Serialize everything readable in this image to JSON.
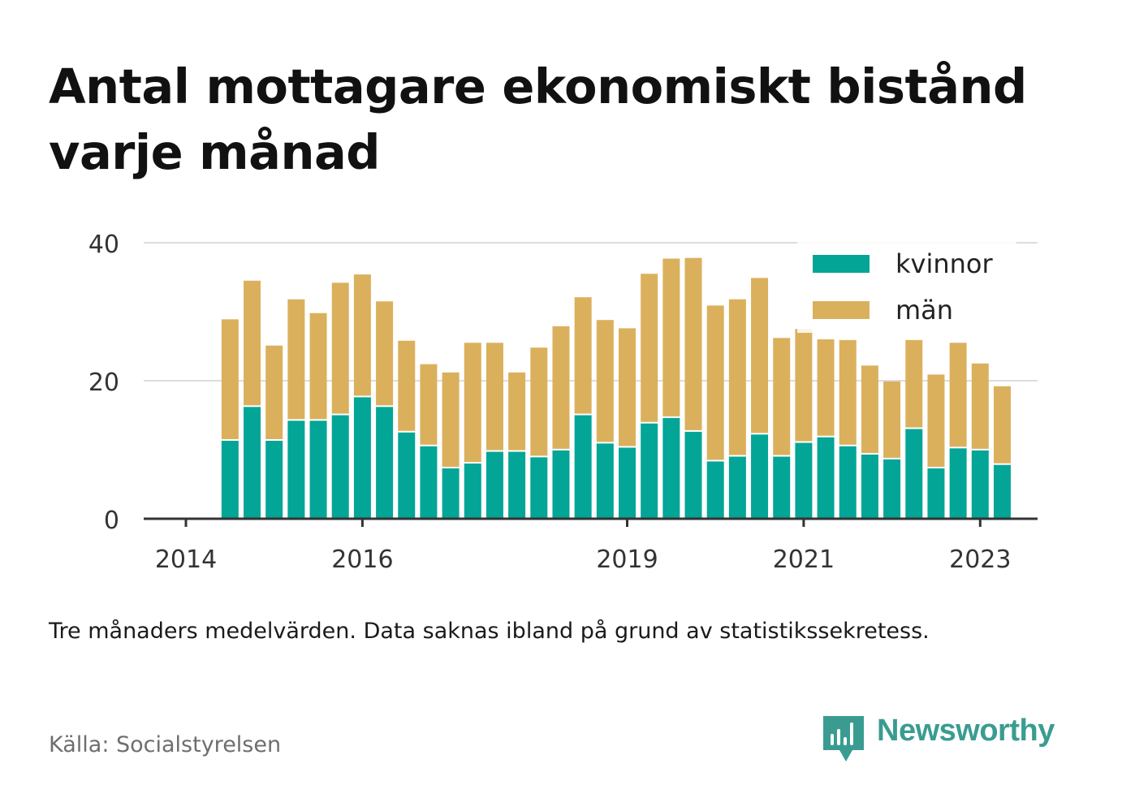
{
  "title": "Antal mottagare ekonomiskt bistånd varje månad",
  "note": "Tre månaders medelvärden. Data saknas ibland på grund av statistikssekretess.",
  "source": "Källa: Socialstyrelsen",
  "brand": "Newsworthy",
  "colors": {
    "kvinnor": "#03a597",
    "man": "#dbb05d",
    "axis": "#333333",
    "grid": "#dddddd",
    "brand": "#3a9c91"
  },
  "chart_data": {
    "type": "bar",
    "stacked": true,
    "ylim": [
      0,
      40
    ],
    "yticks": [
      0,
      20,
      40
    ],
    "xticks": [
      "2014",
      "2016",
      "2019",
      "2021",
      "2023"
    ],
    "grid": true,
    "legend_position": "top-right",
    "categories": [
      "2014-07",
      "2014-10",
      "2015-01",
      "2015-04",
      "2015-07",
      "2015-10",
      "2016-01",
      "2016-04",
      "2016-07",
      "2016-10",
      "2017-01",
      "2017-04",
      "2017-07",
      "2017-10",
      "2018-01",
      "2018-04",
      "2018-07",
      "2018-10",
      "2019-01",
      "2019-04",
      "2019-07",
      "2019-10",
      "2020-01",
      "2020-04",
      "2020-07",
      "2020-10",
      "2021-01",
      "2021-04",
      "2021-07",
      "2021-10",
      "2022-01",
      "2022-04",
      "2022-07",
      "2022-10",
      "2023-01",
      "2023-04"
    ],
    "series": [
      {
        "name": "kvinnor",
        "values": [
          11.3,
          16.2,
          11.3,
          14.2,
          14.2,
          15,
          17.6,
          16.2,
          12.5,
          10.5,
          7.3,
          8,
          9.7,
          9.7,
          8.9,
          9.9,
          15,
          10.9,
          10.3,
          13.8,
          14.6,
          12.6,
          8.3,
          9,
          12.2,
          9,
          11,
          11.8,
          10.5,
          9.3,
          8.6,
          13,
          7.3,
          10.2,
          9.9,
          7.8
        ]
      },
      {
        "name": "män",
        "values": [
          17.6,
          18.3,
          13.8,
          17.6,
          15.6,
          19.2,
          17.8,
          15.3,
          13.3,
          11.9,
          13.9,
          17.5,
          15.8,
          11.5,
          15.9,
          18,
          17.1,
          17.9,
          17.3,
          21.7,
          23.1,
          25.2,
          22.6,
          22.8,
          22.7,
          17.2,
          16.5,
          14.2,
          15.4,
          12.9,
          11.3,
          12.9,
          13.6,
          15.3,
          12.6,
          11.4
        ]
      }
    ]
  }
}
